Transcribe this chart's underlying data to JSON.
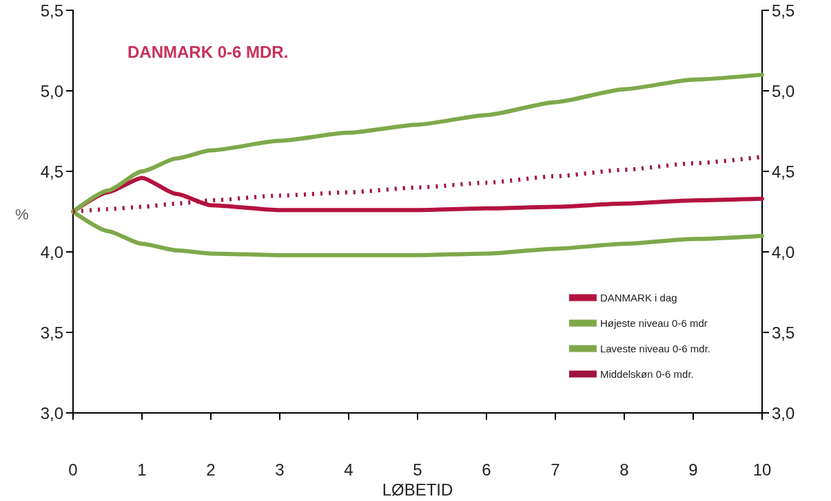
{
  "chart_data": {
    "type": "line",
    "title": "DANMARK 0-6 MDR.",
    "xlabel": "LØBETID",
    "ylabel": "%",
    "x": [
      0,
      0.5,
      1,
      1.5,
      2,
      3,
      4,
      5,
      6,
      7,
      8,
      9,
      10
    ],
    "series": [
      {
        "name": "DANMARK i dag",
        "color": "#b5123f",
        "values": [
          4.25,
          4.37,
          4.46,
          4.36,
          4.29,
          4.26,
          4.26,
          4.26,
          4.27,
          4.28,
          4.3,
          4.32,
          4.33
        ]
      },
      {
        "name": "Højeste niveau 0-6 mdr",
        "color": "#7fa84a",
        "values": [
          4.25,
          4.38,
          4.5,
          4.58,
          4.63,
          4.69,
          4.74,
          4.79,
          4.85,
          4.93,
          5.01,
          5.07,
          5.1
        ]
      },
      {
        "name": "Laveste niveau 0-6 mdr.",
        "color": "#7fa84a",
        "values": [
          4.25,
          4.13,
          4.05,
          4.01,
          3.99,
          3.98,
          3.98,
          3.98,
          3.99,
          4.02,
          4.05,
          4.08,
          4.1
        ]
      },
      {
        "name": "Middelskøn 0-6 mdr.",
        "color": "#a0123f",
        "line_style": "dotted",
        "values": [
          4.25,
          4.265,
          4.28,
          4.3,
          4.32,
          4.35,
          4.37,
          4.4,
          4.43,
          4.47,
          4.51,
          4.55,
          4.59
        ]
      }
    ],
    "xlim": [
      0,
      10
    ],
    "xticks": [
      0,
      1,
      2,
      3,
      4,
      5,
      6,
      7,
      8,
      9,
      10
    ],
    "ylim": [
      3.0,
      5.5
    ],
    "yticks": [
      {
        "value": 3.0,
        "label": "3,0"
      },
      {
        "value": 3.5,
        "label": "3,5"
      },
      {
        "value": 4.0,
        "label": "4,0"
      },
      {
        "value": 4.5,
        "label": "4,5"
      },
      {
        "value": 5.0,
        "label": "5,0"
      },
      {
        "value": 5.5,
        "label": "5,5"
      }
    ],
    "y2lim": [
      3.0,
      5.5
    ],
    "y2ticks": [
      {
        "value": 3.0,
        "label": "3,0"
      },
      {
        "value": 3.5,
        "label": "3,5"
      },
      {
        "value": 4.0,
        "label": "4,0"
      },
      {
        "value": 4.5,
        "label": "4,5"
      },
      {
        "value": 5.0,
        "label": "5,0"
      },
      {
        "value": 5.5,
        "label": "5,5"
      }
    ],
    "grid": false,
    "legend": "bottom right",
    "marker": "none",
    "line_style": "solid"
  }
}
